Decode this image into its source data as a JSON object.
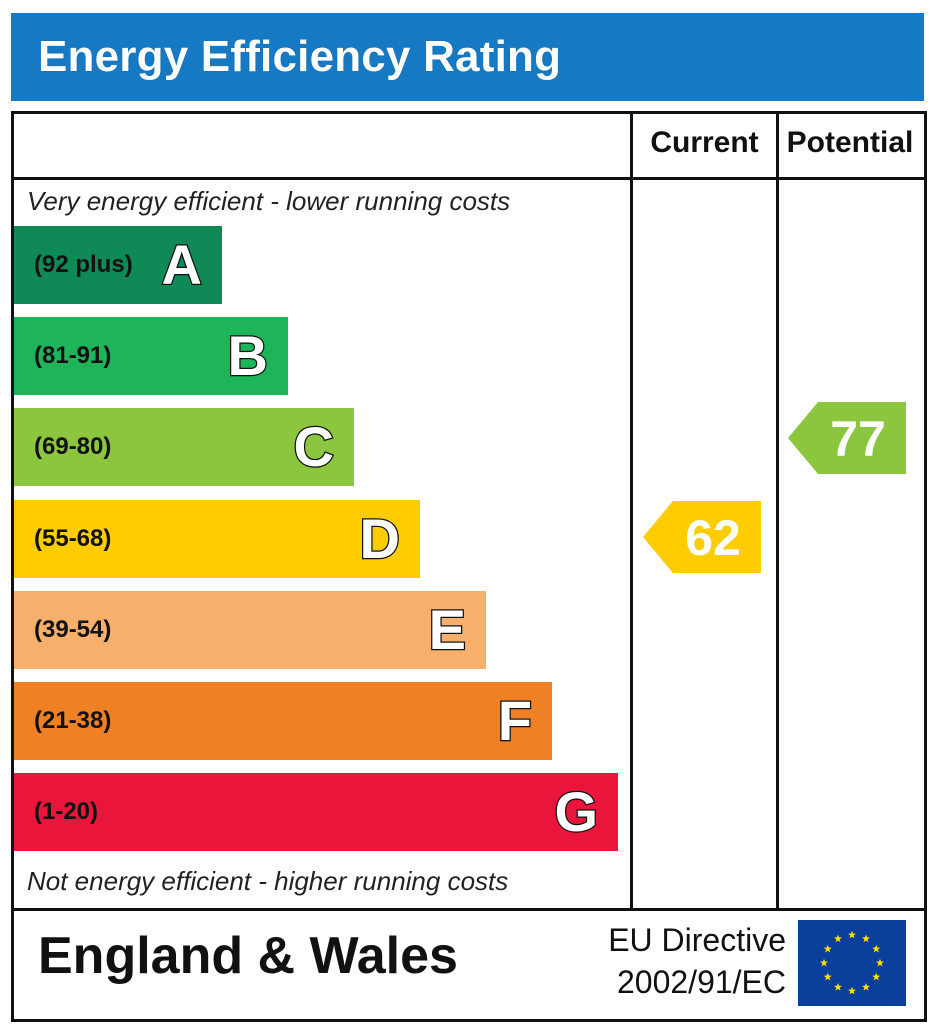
{
  "title": "Energy Efficiency Rating",
  "columns": {
    "current": "Current",
    "potential": "Potential"
  },
  "captions": {
    "top": "Very energy efficient - lower running costs",
    "bottom": "Not energy efficient - higher running costs"
  },
  "footer": {
    "country": "England & Wales",
    "directive_line1": "EU Directive",
    "directive_line2": "2002/91/EC"
  },
  "icons": {
    "flag": "eu-flag-icon"
  },
  "chart_data": {
    "type": "bar",
    "title": "Energy Efficiency Rating",
    "categories": [
      "A",
      "B",
      "C",
      "D",
      "E",
      "F",
      "G"
    ],
    "ranges": [
      "(92 plus)",
      "(81-91)",
      "(69-80)",
      "(55-68)",
      "(39-54)",
      "(21-38)",
      "(1-20)"
    ],
    "colors": [
      "#0f8a56",
      "#1db45a",
      "#8cc63f",
      "#ffcc00",
      "#f7b06b",
      "#ef8023",
      "#e9153b"
    ],
    "current": {
      "value": 62,
      "band": "D",
      "color": "#ffcc00"
    },
    "potential": {
      "value": 77,
      "band": "C",
      "color": "#8cc63f"
    }
  }
}
